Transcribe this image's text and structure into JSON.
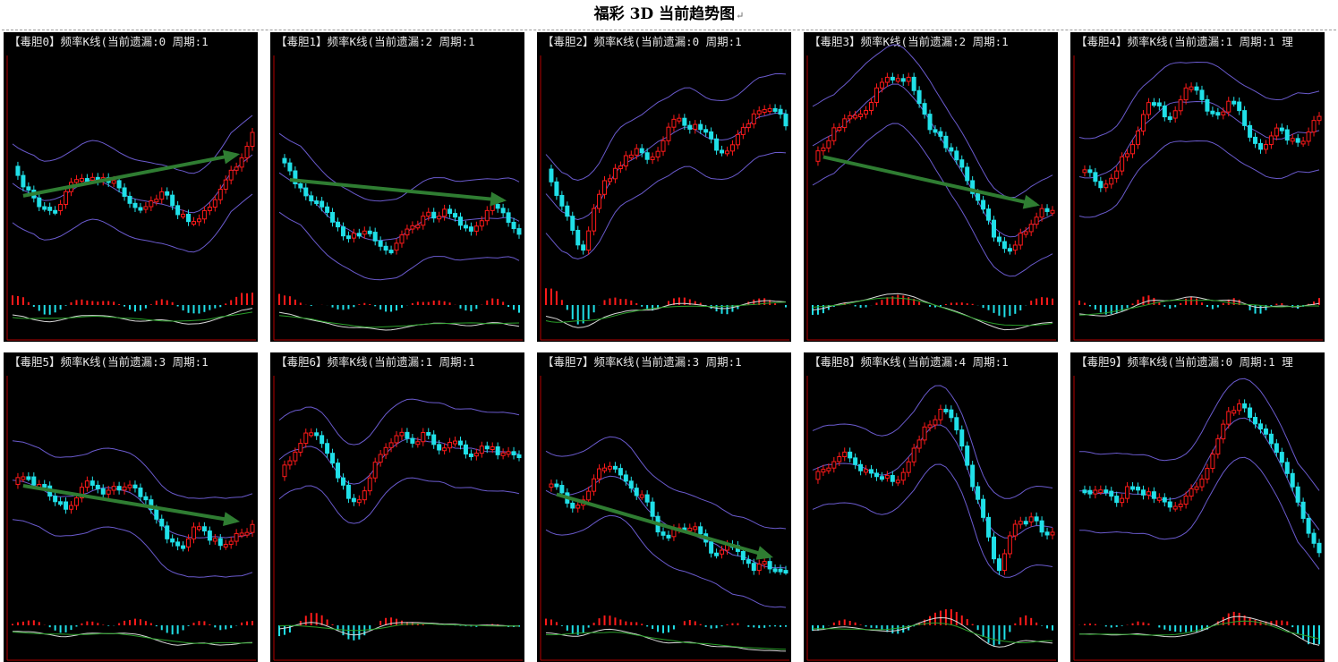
{
  "page": {
    "title": "福彩 3D 当前趋势图",
    "return_mark": "↵"
  },
  "colors": {
    "background": "#000000",
    "up_candle": "#ff1a1a",
    "down_candle": "#20e0e8",
    "band_line": "#6a5acd",
    "macd_fast": "#d8d8d8",
    "macd_slow": "#2aa02a",
    "trend_arrow": "#2f7d32",
    "axis": "#b40000"
  },
  "panels": [
    {
      "header": "【毒胆0】频率K线(当前遗漏:0 周期:1",
      "trend_arrow": true
    },
    {
      "header": "【毒胆1】频率K线(当前遗漏:2 周期:1",
      "trend_arrow": true
    },
    {
      "header": "【毒胆2】频率K线(当前遗漏:0 周期:1",
      "trend_arrow": false
    },
    {
      "header": "【毒胆3】频率K线(当前遗漏:2 周期:1",
      "trend_arrow": true
    },
    {
      "header": "【毒胆4】频率K线(当前遗漏:1 周期:1 理",
      "trend_arrow": false
    },
    {
      "header": "【毒胆5】频率K线(当前遗漏:3 周期:1",
      "trend_arrow": true
    },
    {
      "header": "【毒胆6】频率K线(当前遗漏:1 周期:1",
      "trend_arrow": false
    },
    {
      "header": "【毒胆7】频率K线(当前遗漏:3 周期:1",
      "trend_arrow": true
    },
    {
      "header": "【毒胆8】频率K线(当前遗漏:4 周期:1",
      "trend_arrow": false
    },
    {
      "header": "【毒胆9】频率K线(当前遗漏:0 周期:1 理",
      "trend_arrow": false
    }
  ]
}
